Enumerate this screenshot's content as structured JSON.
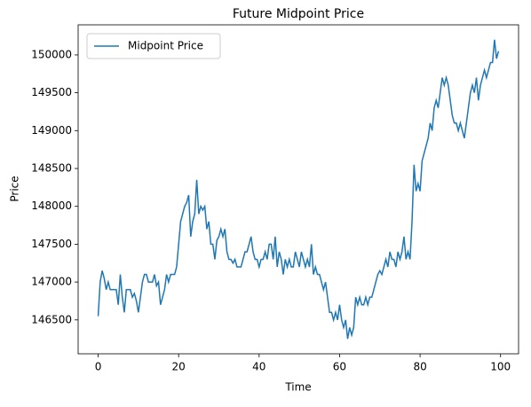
{
  "chart_data": {
    "type": "line",
    "title": "Future Midpoint Price",
    "x_label": "Time",
    "y_label": "Price",
    "xlim": [
      -4.975,
      104.475
    ],
    "xticks": [
      0,
      20,
      40,
      60,
      80,
      100
    ],
    "ylim": [
      146052.5,
      150397.5
    ],
    "yticks": [
      146500,
      147000,
      147500,
      148000,
      148500,
      149000,
      149500,
      150000
    ],
    "grid": false,
    "legend": "upper left",
    "x": [
      0,
      0.5,
      1,
      1.5,
      2,
      2.5,
      3,
      3.5,
      4,
      4.5,
      5,
      5.5,
      6,
      6.5,
      7,
      7.5,
      8,
      8.5,
      9,
      9.5,
      10,
      10.5,
      11,
      11.5,
      12,
      12.5,
      13,
      13.5,
      14,
      14.5,
      15,
      15.5,
      16,
      16.5,
      17,
      17.5,
      18,
      18.5,
      19,
      19.5,
      20,
      20.5,
      21,
      21.5,
      22,
      22.5,
      23,
      23.5,
      24,
      24.5,
      25,
      25.5,
      26,
      26.5,
      27,
      27.5,
      28,
      28.5,
      29,
      29.5,
      30,
      30.5,
      31,
      31.5,
      32,
      32.5,
      33,
      33.5,
      34,
      34.5,
      35,
      35.5,
      36,
      36.5,
      37,
      37.5,
      38,
      38.5,
      39,
      39.5,
      40,
      40.5,
      41,
      41.5,
      42,
      42.5,
      43,
      43.5,
      44,
      44.5,
      45,
      45.5,
      46,
      46.5,
      47,
      47.5,
      48,
      48.5,
      49,
      49.5,
      50,
      50.5,
      51,
      51.5,
      52,
      52.5,
      53,
      53.5,
      54,
      54.5,
      55,
      55.5,
      56,
      56.5,
      57,
      57.5,
      58,
      58.5,
      59,
      59.5,
      60,
      60.5,
      61,
      61.5,
      62,
      62.5,
      63,
      63.5,
      64,
      64.5,
      65,
      65.5,
      66,
      66.5,
      67,
      67.5,
      68,
      68.5,
      69,
      69.5,
      70,
      70.5,
      71,
      71.5,
      72,
      72.5,
      73,
      73.5,
      74,
      74.5,
      75,
      75.5,
      76,
      76.5,
      77,
      77.5,
      78,
      78.5,
      79,
      79.5,
      80,
      80.5,
      81,
      81.5,
      82,
      82.5,
      83,
      83.5,
      84,
      84.5,
      85,
      85.5,
      86,
      86.5,
      87,
      87.5,
      88,
      88.5,
      89,
      89.5,
      90,
      90.5,
      91,
      91.5,
      92,
      92.5,
      93,
      93.5,
      94,
      94.5,
      95,
      95.5,
      96,
      96.5,
      97,
      97.5,
      98,
      98.5,
      99,
      99.5
    ],
    "series": [
      {
        "name": "Midpoint Price",
        "color": "#1f77b4",
        "values": [
          146550,
          147000,
          147150,
          147050,
          146900,
          147000,
          146900,
          146900,
          146900,
          146900,
          146700,
          147100,
          146800,
          146600,
          146900,
          146900,
          146900,
          146800,
          146850,
          146750,
          146600,
          146800,
          147000,
          147100,
          147100,
          147000,
          147000,
          147000,
          147100,
          146950,
          147000,
          146700,
          146800,
          146900,
          147100,
          147000,
          147100,
          147100,
          147100,
          147200,
          147500,
          147800,
          147900,
          148000,
          148050,
          148150,
          147600,
          147800,
          147900,
          148350,
          147900,
          148000,
          147950,
          148000,
          147700,
          147800,
          147500,
          147500,
          147300,
          147550,
          147600,
          147700,
          147600,
          147700,
          147400,
          147300,
          147300,
          147250,
          147300,
          147200,
          147200,
          147200,
          147300,
          147400,
          147400,
          147500,
          147600,
          147400,
          147300,
          147300,
          147200,
          147300,
          147300,
          147400,
          147300,
          147500,
          147500,
          147300,
          147600,
          147200,
          147400,
          147300,
          147100,
          147300,
          147200,
          147300,
          147200,
          147200,
          147400,
          147300,
          147200,
          147400,
          147300,
          147200,
          147300,
          147200,
          147500,
          147100,
          147200,
          147100,
          147100,
          147000,
          146900,
          147000,
          146800,
          146600,
          146600,
          146500,
          146600,
          146500,
          146700,
          146500,
          146400,
          146500,
          146250,
          146400,
          146300,
          146400,
          146800,
          146700,
          146800,
          146700,
          146700,
          146800,
          146700,
          146800,
          146800,
          146900,
          147000,
          147100,
          147150,
          147100,
          147200,
          147300,
          147200,
          147400,
          147300,
          147300,
          147200,
          147400,
          147300,
          147400,
          147600,
          147300,
          147400,
          147300,
          147800,
          148550,
          148200,
          148300,
          148200,
          148600,
          148700,
          148800,
          148900,
          149100,
          149000,
          149300,
          149400,
          149300,
          149500,
          149700,
          149600,
          149700,
          149600,
          149400,
          149200,
          149100,
          149100,
          149000,
          149100,
          149000,
          148900,
          149100,
          149300,
          149500,
          149600,
          149500,
          149700,
          149400,
          149600,
          149700,
          149800,
          149700,
          149800,
          149900,
          149900,
          150200,
          149950,
          150050
        ]
      }
    ]
  }
}
